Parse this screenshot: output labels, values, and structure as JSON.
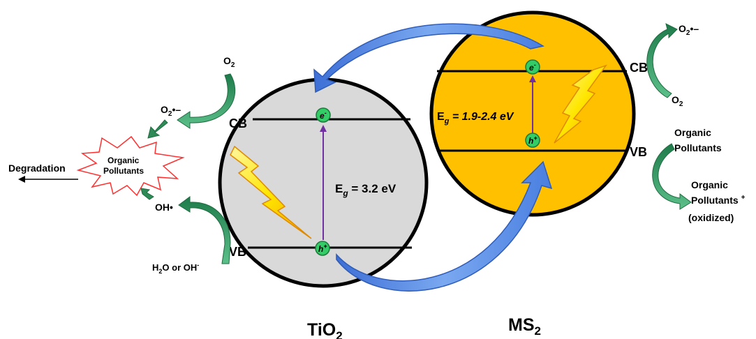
{
  "tio2": {
    "cb_label": "CB",
    "vb_label": "VB",
    "electron": "e",
    "electron_sup": "-",
    "hole": "h",
    "hole_sup": "+",
    "eg_prefix": "E",
    "eg_sub": "g",
    "eg_value": " = 3.2 eV",
    "name_main": "TiO",
    "name_sub": "2",
    "fill_color": "#d9d9d9"
  },
  "ms2": {
    "cb_label": "CB",
    "vb_label": "VB",
    "electron": "e",
    "electron_sup": "-",
    "hole": "h",
    "hole_sup": "+",
    "eg_prefix": "E",
    "eg_sub": "g",
    "eg_value": " = 1.9-2.4 eV",
    "name_main": "MS",
    "name_sub": "2",
    "fill_color": "#ffc000"
  },
  "left_side": {
    "o2_main": "O",
    "o2_sub": "2",
    "superoxide_main": "O",
    "superoxide_sub": "2",
    "superoxide_radical": "•–",
    "pollutant_line1": "Organic",
    "pollutant_line2": "Pollutants",
    "degradation": "Degradation",
    "hydroxyl": "OH•",
    "h2o_a": "H",
    "h2o_sub": "2",
    "h2o_b": "O or OH",
    "h2o_sup": "-"
  },
  "right_side": {
    "superoxide_main": "O",
    "superoxide_sub": "2",
    "superoxide_radical": "•–",
    "o2_main": "O",
    "o2_sub": "2",
    "pollutant_line1": "Organic",
    "pollutant_line2": "Pollutants",
    "oxidized_line1": "Organic",
    "oxidized_line2": "Pollutants",
    "oxidized_sup": "+",
    "oxidized_line3": "(oxidized)"
  },
  "colors": {
    "transfer_arrow": "#5b8fe0",
    "green_arrow": "#2e8b57",
    "carrier_dot": "#33cc66",
    "excitation_arrow": "#7030a0",
    "lightning": "#ffe600",
    "starburst_border": "#ff3030"
  },
  "icons": {
    "lightning_tio2": "lightning-icon",
    "lightning_ms2": "lightning-icon",
    "starburst": "starburst-shape"
  }
}
